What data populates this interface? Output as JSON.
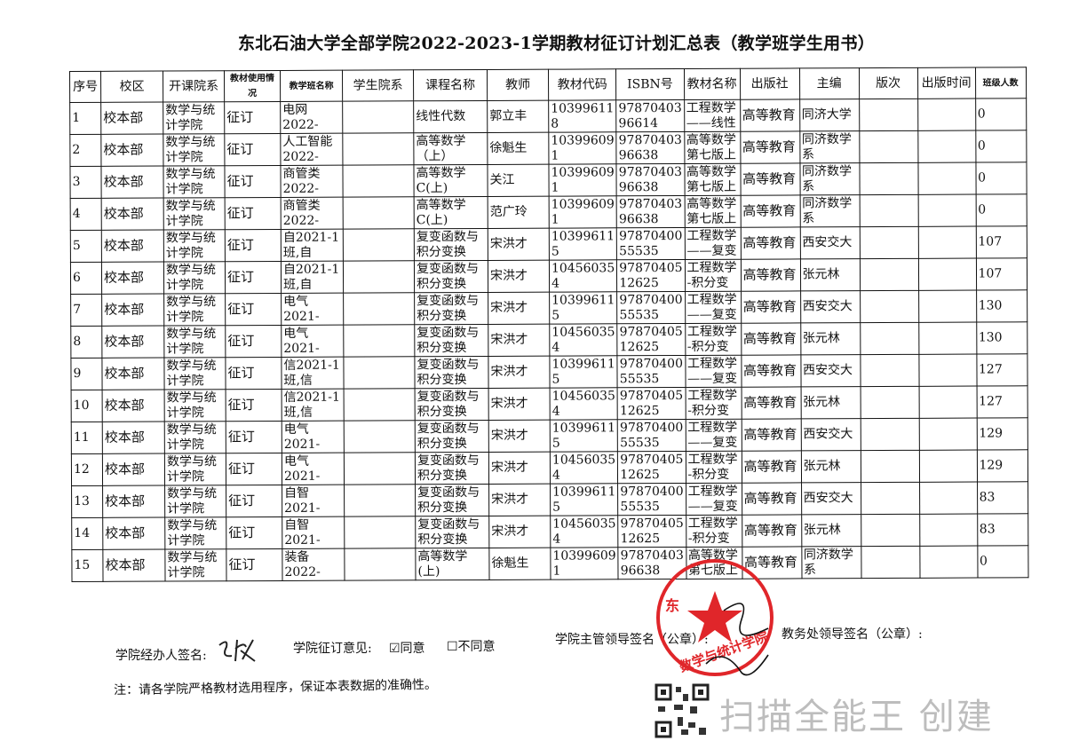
{
  "title": "东北石油大学全部学院2022-2023-1学期教材征订计划汇总表（教学班学生用书）",
  "table": {
    "headers": [
      "序号",
      "校区",
      "开课院系",
      "教材使用情况",
      "教学班名称",
      "学生院系",
      "课程名称",
      "教师",
      "教材代码",
      "ISBN号",
      "教材名称",
      "出版社",
      "主编",
      "版次",
      "出版时间",
      "班级人数"
    ],
    "rows": [
      [
        "1",
        "校本部",
        "数学与统\n计学院",
        "征订",
        "电网\n2022-",
        "",
        "线性代数",
        "郭立丰",
        "10399611\n8",
        "97870403\n96614",
        "工程数学\n——线性",
        "高等教育",
        "同济大学",
        "",
        "",
        "0"
      ],
      [
        "2",
        "校本部",
        "数学与统\n计学院",
        "征订",
        "人工智能\n2022-",
        "",
        "高等数学\n（上）",
        "徐魁生",
        "10399609\n1",
        "97870403\n96638",
        "高等数学\n第七版上",
        "高等教育",
        "同济数学\n系",
        "",
        "",
        "0"
      ],
      [
        "3",
        "校本部",
        "数学与统\n计学院",
        "征订",
        "商管类\n2022-",
        "",
        "高等数学\nC(上)",
        "关江",
        "10399609\n1",
        "97870403\n96638",
        "高等数学\n第七版上",
        "高等教育",
        "同济数学\n系",
        "",
        "",
        "0"
      ],
      [
        "4",
        "校本部",
        "数学与统\n计学院",
        "征订",
        "商管类\n2022-",
        "",
        "高等数学\nC(上)",
        "范广玲",
        "10399609\n1",
        "97870403\n96638",
        "高等数学\n第七版上",
        "高等教育",
        "同济数学\n系",
        "",
        "",
        "0"
      ],
      [
        "5",
        "校本部",
        "数学与统\n计学院",
        "征订",
        "自2021-1\n班,自",
        "",
        "复变函数与\n积分变换",
        "宋洪才",
        "10399611\n5",
        "97870400\n55535",
        "工程数学\n——复变",
        "高等教育",
        "西安交大",
        "",
        "",
        "107"
      ],
      [
        "6",
        "校本部",
        "数学与统\n计学院",
        "征订",
        "自2021-1\n班,自",
        "",
        "复变函数与\n积分变换",
        "宋洪才",
        "10456035\n4",
        "97870405\n12625",
        "工程数学\n-积分变",
        "高等教育",
        "张元林",
        "",
        "",
        "107"
      ],
      [
        "7",
        "校本部",
        "数学与统\n计学院",
        "征订",
        "电气\n2021-",
        "",
        "复变函数与\n积分变换",
        "宋洪才",
        "10399611\n5",
        "97870400\n55535",
        "工程数学\n——复变",
        "高等教育",
        "西安交大",
        "",
        "",
        "130"
      ],
      [
        "8",
        "校本部",
        "数学与统\n计学院",
        "征订",
        "电气\n2021-",
        "",
        "复变函数与\n积分变换",
        "宋洪才",
        "10456035\n4",
        "97870405\n12625",
        "工程数学\n-积分变",
        "高等教育",
        "张元林",
        "",
        "",
        "130"
      ],
      [
        "9",
        "校本部",
        "数学与统\n计学院",
        "征订",
        "信2021-1\n班,信",
        "",
        "复变函数与\n积分变换",
        "宋洪才",
        "10399611\n5",
        "97870400\n55535",
        "工程数学\n——复变",
        "高等教育",
        "西安交大",
        "",
        "",
        "127"
      ],
      [
        "10",
        "校本部",
        "数学与统\n计学院",
        "征订",
        "信2021-1\n班,信",
        "",
        "复变函数与\n积分变换",
        "宋洪才",
        "10456035\n4",
        "97870405\n12625",
        "工程数学\n-积分变",
        "高等教育",
        "张元林",
        "",
        "",
        "127"
      ],
      [
        "11",
        "校本部",
        "数学与统\n计学院",
        "征订",
        "电气\n2021-",
        "",
        "复变函数与\n积分变换",
        "宋洪才",
        "10399611\n5",
        "97870400\n55535",
        "工程数学\n——复变",
        "高等教育",
        "西安交大",
        "",
        "",
        "129"
      ],
      [
        "12",
        "校本部",
        "数学与统\n计学院",
        "征订",
        "电气\n2021-",
        "",
        "复变函数与\n积分变换",
        "宋洪才",
        "10456035\n4",
        "97870405\n12625",
        "工程数学\n-积分变",
        "高等教育",
        "张元林",
        "",
        "",
        "129"
      ],
      [
        "13",
        "校本部",
        "数学与统\n计学院",
        "征订",
        "自智\n2021-",
        "",
        "复变函数与\n积分变换",
        "宋洪才",
        "10399611\n5",
        "97870400\n55535",
        "工程数学\n——复变",
        "高等教育",
        "西安交大",
        "",
        "",
        "83"
      ],
      [
        "14",
        "校本部",
        "数学与统\n计学院",
        "征订",
        "自智\n2021-",
        "",
        "复变函数与\n积分变换",
        "宋洪才",
        "10456035\n4",
        "97870405\n12625",
        "工程数学\n-积分变",
        "高等教育",
        "张元林",
        "",
        "",
        "83"
      ],
      [
        "15",
        "校本部",
        "数学与统\n计学院",
        "征订",
        "装备\n2022-",
        "",
        "高等数学\n(上)",
        "徐魁生",
        "10399609\n1",
        "97870403\n96638",
        "高等数学\n第七版上",
        "高等教育",
        "同济数学\n系",
        "",
        "",
        "0"
      ]
    ]
  },
  "footer": {
    "handler_label": "学院经办人签名:",
    "opinion_label": "学院征订意见:",
    "agree": "☑同意",
    "disagree": "☐不同意",
    "leader_label": "学院主管领导签名（公章）:",
    "office_label": "教务处领导签名（公章）:",
    "note": "注：请各学院严格教材选用程序，保证本表数据的准确性。"
  },
  "stamp": {
    "text": "东北石油大学 数学与统计学院",
    "color": "#e0262a"
  },
  "watermark": "扫描全能王 创建"
}
